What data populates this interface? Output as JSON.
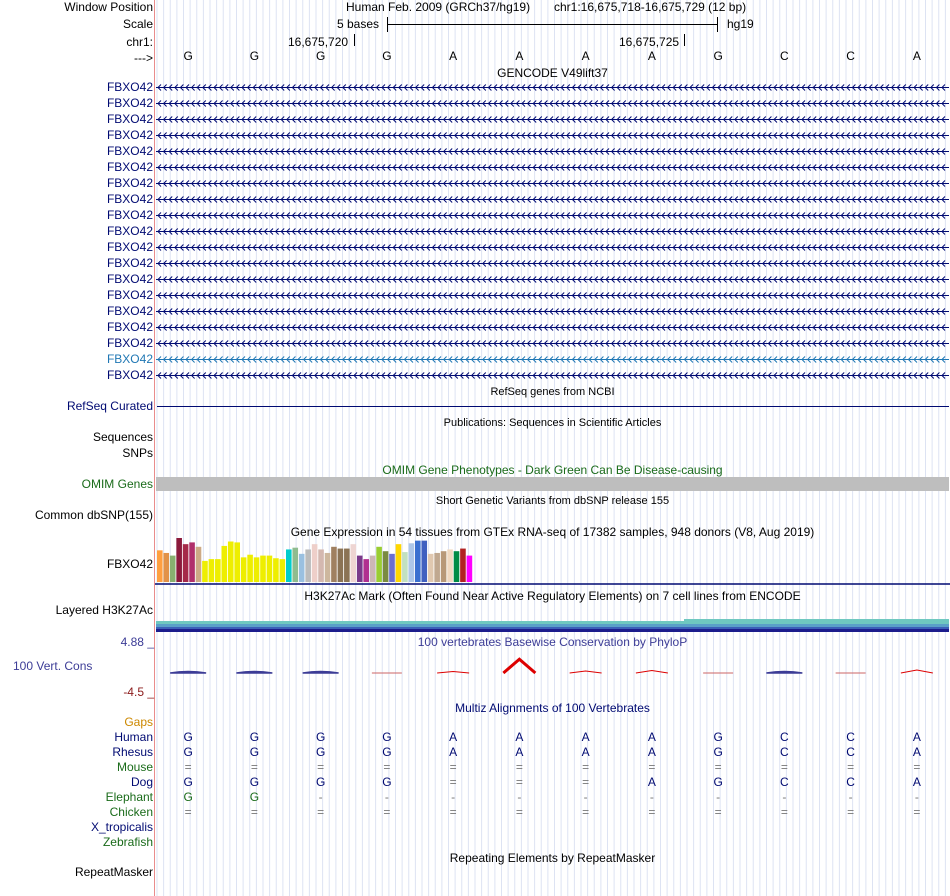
{
  "header": {
    "window_position_label": "Window Position",
    "scale_label": "Scale",
    "chrom_label": "chr1:",
    "strand_label": "--->",
    "assembly_title": "Human Feb. 2009 (GRCh37/hg19)",
    "position_text": "chr1:16,675,718-16,675,729 (12 bp)",
    "scale_text": "5 bases",
    "assembly_short": "hg19",
    "coord_1": "16,675,720",
    "coord_2": "16,675,725"
  },
  "sequence": [
    "G",
    "G",
    "G",
    "G",
    "A",
    "A",
    "A",
    "A",
    "G",
    "C",
    "C",
    "A"
  ],
  "gencode": {
    "title": "GENCODE V49lift37",
    "gene_label": "FBXO42",
    "rows": 19,
    "highlight_row": 17
  },
  "refseq": {
    "title": "RefSeq genes from NCBI",
    "label": "RefSeq Curated"
  },
  "publications": {
    "title": "Publications: Sequences in Scientific Articles",
    "label_sequences": "Sequences",
    "label_snps": "SNPs"
  },
  "omim": {
    "title": "OMIM Gene Phenotypes - Dark Green Can Be Disease-causing",
    "label": "OMIM Genes"
  },
  "dbsnp": {
    "title": "Short Genetic Variants from dbSNP release 155",
    "label": "Common dbSNP(155)"
  },
  "gtex": {
    "title": "Gene Expression in 54 tissues from GTEx RNA-seq of 17382 samples, 948 donors (V8, Aug 2019)",
    "label": "FBXO42",
    "bars": [
      {
        "v": 0.72,
        "c": "#ff9f40"
      },
      {
        "v": 0.66,
        "c": "#e29248"
      },
      {
        "v": 0.6,
        "c": "#88b070"
      },
      {
        "v": 1.0,
        "c": "#8b1a3c"
      },
      {
        "v": 0.86,
        "c": "#a52a4a"
      },
      {
        "v": 0.9,
        "c": "#b0306c"
      },
      {
        "v": 0.8,
        "c": "#cdaa86"
      },
      {
        "v": 0.48,
        "c": "#eeee00"
      },
      {
        "v": 0.52,
        "c": "#eeee00"
      },
      {
        "v": 0.52,
        "c": "#eeee00"
      },
      {
        "v": 0.82,
        "c": "#eeee00"
      },
      {
        "v": 0.92,
        "c": "#eeee00"
      },
      {
        "v": 0.9,
        "c": "#eeee00"
      },
      {
        "v": 0.56,
        "c": "#eeee00"
      },
      {
        "v": 0.62,
        "c": "#eeee00"
      },
      {
        "v": 0.56,
        "c": "#eeee00"
      },
      {
        "v": 0.6,
        "c": "#eeee00"
      },
      {
        "v": 0.6,
        "c": "#eeee00"
      },
      {
        "v": 0.54,
        "c": "#eeee00"
      },
      {
        "v": 0.52,
        "c": "#eeee00"
      },
      {
        "v": 0.74,
        "c": "#00cdcd"
      },
      {
        "v": 0.78,
        "c": "#8fbc8f"
      },
      {
        "v": 0.64,
        "c": "#9ac0e0"
      },
      {
        "v": 0.74,
        "c": "#bcbcbc"
      },
      {
        "v": 0.86,
        "c": "#eecfc9"
      },
      {
        "v": 0.74,
        "c": "#d4b8b0"
      },
      {
        "v": 0.66,
        "c": "#cdb79e"
      },
      {
        "v": 0.8,
        "c": "#a08060"
      },
      {
        "v": 0.76,
        "c": "#8b7355"
      },
      {
        "v": 0.76,
        "c": "#8b7355"
      },
      {
        "v": 0.86,
        "c": "#eed5d2"
      },
      {
        "v": 0.6,
        "c": "#7a3a8a"
      },
      {
        "v": 0.52,
        "c": "#b03090"
      },
      {
        "v": 0.6,
        "c": "#cdb7b5"
      },
      {
        "v": 0.8,
        "c": "#9acd32"
      },
      {
        "v": 0.7,
        "c": "#7a8b40"
      },
      {
        "v": 0.64,
        "c": "#6b6ecf"
      },
      {
        "v": 0.86,
        "c": "#ffd700"
      },
      {
        "v": 0.68,
        "c": "#c2e0c0"
      },
      {
        "v": 0.88,
        "c": "#aec7e8"
      },
      {
        "v": 0.94,
        "c": "#3a70d0"
      },
      {
        "v": 0.94,
        "c": "#4060c0"
      },
      {
        "v": 0.64,
        "c": "#e0c8b0"
      },
      {
        "v": 0.66,
        "c": "#c0a890"
      },
      {
        "v": 0.7,
        "c": "#b89878"
      },
      {
        "v": 0.74,
        "c": "#f0d8c0"
      },
      {
        "v": 0.7,
        "c": "#008b45"
      },
      {
        "v": 0.76,
        "c": "#b22222"
      },
      {
        "v": 0.6,
        "c": "#ff00ff"
      }
    ]
  },
  "h3k27ac": {
    "title": "H3K27Ac Mark (Often Found Near Active Regulatory Elements) on 7 cell lines from ENCODE",
    "label": "Layered H3K27Ac"
  },
  "phylop": {
    "title": "100 vertebrates Basewise Conservation by PhyloP",
    "label": "100 Vert. Cons",
    "max_label": "4.88 _",
    "min_label": "-4.5 _",
    "values": [
      -0.6,
      -0.8,
      -0.9,
      0.0,
      0.3,
      2.8,
      0.4,
      0.5,
      0.0,
      -0.5,
      0.0,
      0.6
    ],
    "max": 4.88,
    "min": -4.5
  },
  "multiz": {
    "title": "Multiz Alignments of 100 Vertebrates",
    "gaps_label": "Gaps",
    "species": [
      {
        "name": "Human",
        "color": "#000a72",
        "seq": [
          "G",
          "G",
          "G",
          "G",
          "A",
          "A",
          "A",
          "A",
          "G",
          "C",
          "C",
          "A"
        ]
      },
      {
        "name": "Rhesus",
        "color": "#000a72",
        "seq": [
          "G",
          "G",
          "G",
          "G",
          "A",
          "A",
          "A",
          "A",
          "G",
          "C",
          "C",
          "A"
        ]
      },
      {
        "name": "Mouse",
        "color": "#1a6b1a",
        "seq": [
          "=",
          "=",
          "=",
          "=",
          "=",
          "=",
          "=",
          "=",
          "=",
          "=",
          "=",
          "="
        ]
      },
      {
        "name": "Dog",
        "color": "#000a72",
        "seq": [
          "G",
          "G",
          "G",
          "G",
          "=",
          "=",
          "=",
          "A",
          "G",
          "C",
          "C",
          "A"
        ]
      },
      {
        "name": "Elephant",
        "color": "#1a6b1a",
        "seq": [
          "G",
          "G",
          "-",
          "-",
          "-",
          "-",
          "-",
          "-",
          "-",
          "-",
          "-",
          "-"
        ]
      },
      {
        "name": "Chicken",
        "color": "#1a6b1a",
        "seq": [
          "=",
          "=",
          "=",
          "=",
          "=",
          "=",
          "=",
          "=",
          "=",
          "=",
          "=",
          "="
        ]
      },
      {
        "name": "X_tropicalis",
        "color": "#000a72",
        "seq": []
      },
      {
        "name": "Zebrafish",
        "color": "#1a6b1a",
        "seq": []
      }
    ]
  },
  "repeatmasker": {
    "title": "Repeating Elements by RepeatMasker",
    "label": "RepeatMasker"
  },
  "colors": {
    "navy": "#000a72",
    "omim_green": "#1a6b1a",
    "gaps_orange": "#cc8800",
    "phylop_blue": "#3c3c96",
    "phylop_red": "#dd0000",
    "gencode_highlight": "#1f77b4"
  }
}
